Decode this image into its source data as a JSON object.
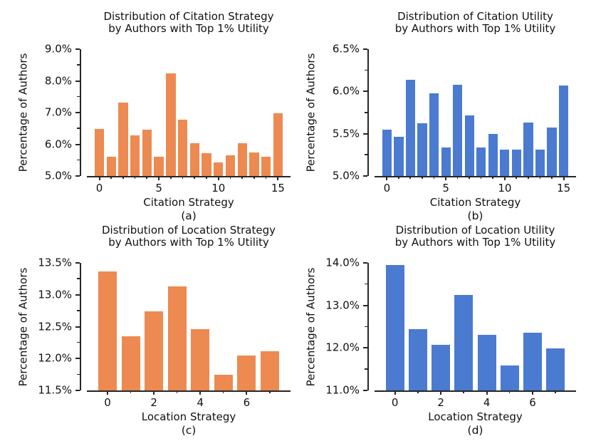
{
  "figure": {
    "background": "#ffffff",
    "text_color": "#111111",
    "axis_color": "#262626",
    "orange": "#ed8a51",
    "blue": "#4b7ad1"
  },
  "chart_data": [
    {
      "id": "a",
      "type": "bar",
      "caption": "(a)",
      "title_line1": "Distribution of Citation Strategy",
      "title_line2": "by Authors with Top 1% Utility",
      "xlabel": "Citation Strategy",
      "ylabel": "Percentage of Authors",
      "bar_color": "#ed8a51",
      "categories": [
        0,
        1,
        2,
        3,
        4,
        5,
        6,
        7,
        8,
        9,
        10,
        11,
        12,
        13,
        14,
        15
      ],
      "values": [
        6.48,
        5.6,
        7.32,
        6.28,
        6.45,
        5.6,
        8.24,
        6.78,
        6.03,
        5.72,
        5.43,
        5.66,
        6.03,
        5.74,
        5.61,
        6.97
      ],
      "ylim": [
        5.0,
        9.0
      ],
      "y_major_step": 1.0,
      "y_minor_step": 0.5,
      "y_tick_decimals": 1,
      "y_tick_suffix": "%",
      "x_major_ticks": [
        0,
        5,
        10,
        15
      ],
      "x_margin": 1.05,
      "bar_width": 0.8,
      "grid": false,
      "legend": null
    },
    {
      "id": "b",
      "type": "bar",
      "caption": "(b)",
      "title_line1": "Distribution of Citation Utility",
      "title_line2": "by Authors with Top 1% Utility",
      "xlabel": "Citation Strategy",
      "ylabel": "Percentage of Authors",
      "bar_color": "#4b7ad1",
      "categories": [
        0,
        1,
        2,
        3,
        4,
        5,
        6,
        7,
        8,
        9,
        10,
        11,
        12,
        13,
        14,
        15
      ],
      "values": [
        5.55,
        5.46,
        6.14,
        5.62,
        5.98,
        5.34,
        6.08,
        5.72,
        5.34,
        5.5,
        5.31,
        5.31,
        5.63,
        5.31,
        5.57,
        6.07
      ],
      "ylim": [
        5.0,
        6.5
      ],
      "y_major_step": 0.5,
      "y_minor_step": 0.25,
      "y_tick_decimals": 1,
      "y_tick_suffix": "%",
      "x_major_ticks": [
        0,
        5,
        10,
        15
      ],
      "x_margin": 1.05,
      "bar_width": 0.8,
      "grid": false,
      "legend": null
    },
    {
      "id": "c",
      "type": "bar",
      "caption": "(c)",
      "title_line1": "Distribution of Location Strategy",
      "title_line2": "by Authors with Top 1% Utility",
      "xlabel": "Location Strategy",
      "ylabel": "Percentage of Authors",
      "bar_color": "#ed8a51",
      "categories": [
        0,
        1,
        2,
        3,
        4,
        5,
        6,
        7
      ],
      "values": [
        13.37,
        12.35,
        12.74,
        13.13,
        12.46,
        11.75,
        12.05,
        12.12
      ],
      "ylim": [
        11.5,
        13.5
      ],
      "y_major_step": 0.5,
      "y_minor_step": 0.25,
      "y_tick_decimals": 1,
      "y_tick_suffix": "%",
      "x_major_ticks": [
        0,
        2,
        4,
        6
      ],
      "x_margin": 0.89,
      "bar_width": 0.8,
      "grid": false,
      "legend": null
    },
    {
      "id": "d",
      "type": "bar",
      "caption": "(d)",
      "title_line1": "Distribution of Location Utility",
      "title_line2": "by Authors with Top 1% Utility",
      "xlabel": "Location Strategy",
      "ylabel": "Percentage of Authors",
      "bar_color": "#4b7ad1",
      "categories": [
        0,
        1,
        2,
        3,
        4,
        5,
        6,
        7
      ],
      "values": [
        13.95,
        12.44,
        12.08,
        13.24,
        12.31,
        11.58,
        12.36,
        11.99
      ],
      "ylim": [
        11.0,
        14.0
      ],
      "y_major_step": 1.0,
      "y_minor_step": 0.5,
      "y_tick_decimals": 1,
      "y_tick_suffix": "%",
      "x_major_ticks": [
        0,
        2,
        4,
        6
      ],
      "x_margin": 0.89,
      "bar_width": 0.8,
      "grid": false,
      "legend": null
    }
  ]
}
